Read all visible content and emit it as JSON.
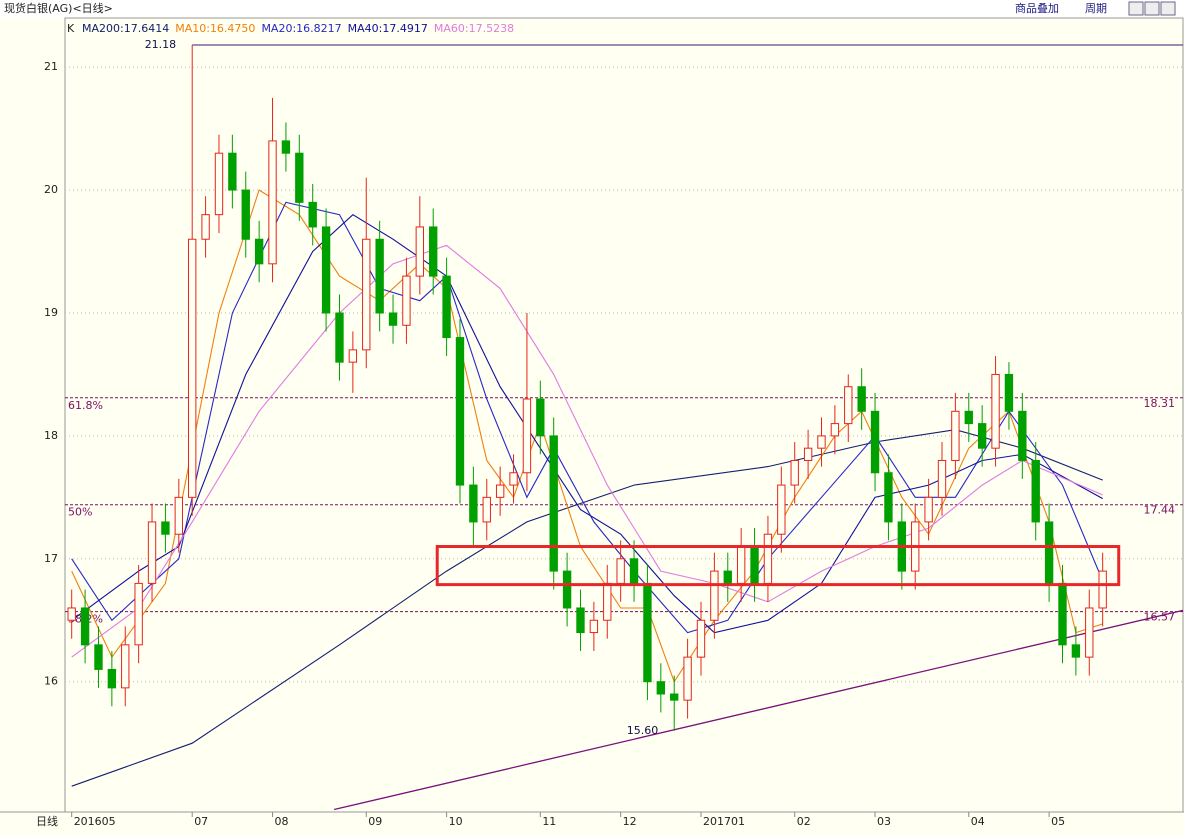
{
  "header": {
    "title": "现货白银(AG)<日线>",
    "buttons": [
      "商品叠加",
      "周期"
    ],
    "period": "日线"
  },
  "chart_data": {
    "type": "candlestick",
    "legend_prefix": "K",
    "open": [
      16.5,
      16.6,
      16.3,
      16.1,
      15.95,
      16.3,
      16.8,
      17.3,
      17.2,
      17.5,
      19.6,
      19.8,
      20.3,
      20.0,
      19.6,
      19.4,
      20.4,
      20.3,
      19.9,
      19.7,
      19.0,
      18.6,
      18.7,
      19.6,
      19.0,
      18.9,
      19.3,
      19.7,
      19.3,
      18.8,
      17.6,
      17.3,
      17.5,
      17.6,
      17.7,
      18.3,
      18.0,
      16.9,
      16.6,
      16.4,
      16.5,
      16.8,
      17.0,
      16.8,
      16.0,
      15.9,
      15.85,
      16.2,
      16.5,
      16.9,
      16.8,
      17.1,
      16.8,
      17.2,
      17.6,
      17.8,
      17.9,
      18.0,
      18.1,
      18.4,
      18.2,
      17.7,
      17.3,
      16.9,
      17.3,
      17.5,
      17.8,
      18.2,
      18.1,
      17.9,
      18.5,
      18.2,
      17.8,
      17.3,
      16.8,
      16.3,
      16.2,
      16.6
    ],
    "high": [
      16.75,
      16.75,
      16.45,
      16.25,
      16.45,
      16.95,
      17.45,
      17.45,
      17.65,
      21.18,
      19.95,
      20.45,
      20.45,
      20.15,
      19.75,
      20.75,
      20.55,
      20.45,
      20.05,
      19.85,
      19.15,
      18.85,
      20.1,
      19.75,
      19.15,
      19.45,
      19.95,
      19.85,
      19.45,
      18.95,
      17.75,
      17.65,
      17.75,
      17.85,
      19.0,
      18.45,
      18.15,
      17.05,
      16.75,
      16.65,
      16.95,
      17.15,
      17.15,
      16.95,
      16.15,
      16.05,
      16.35,
      16.65,
      17.05,
      17.05,
      17.25,
      17.25,
      17.35,
      17.75,
      17.95,
      18.05,
      18.15,
      18.25,
      18.5,
      18.55,
      18.35,
      17.85,
      17.45,
      17.45,
      17.65,
      17.95,
      18.35,
      18.35,
      18.25,
      18.65,
      18.6,
      18.35,
      17.95,
      17.45,
      16.95,
      16.45,
      16.75,
      17.05
    ],
    "low": [
      16.35,
      16.15,
      15.95,
      15.8,
      15.8,
      16.15,
      16.65,
      17.05,
      17.05,
      17.35,
      19.45,
      19.65,
      19.85,
      19.45,
      19.25,
      19.25,
      20.15,
      19.75,
      19.55,
      18.85,
      18.45,
      18.35,
      18.55,
      18.85,
      18.75,
      18.75,
      19.15,
      19.15,
      18.65,
      17.45,
      17.1,
      17.15,
      17.35,
      17.45,
      17.55,
      17.85,
      16.75,
      16.45,
      16.25,
      16.25,
      16.35,
      16.65,
      16.65,
      15.85,
      15.75,
      15.6,
      15.7,
      16.05,
      16.35,
      16.65,
      16.65,
      16.65,
      16.65,
      17.05,
      17.45,
      17.65,
      17.75,
      17.85,
      17.95,
      18.05,
      17.55,
      17.15,
      16.75,
      16.75,
      17.15,
      17.35,
      17.65,
      17.95,
      17.75,
      17.75,
      18.05,
      17.65,
      17.15,
      16.65,
      16.15,
      16.05,
      16.05,
      16.45
    ],
    "close": [
      16.6,
      16.3,
      16.1,
      15.95,
      16.3,
      16.8,
      17.3,
      17.2,
      17.5,
      19.6,
      19.8,
      20.3,
      20.0,
      19.6,
      19.4,
      20.4,
      20.3,
      19.9,
      19.7,
      19.0,
      18.6,
      18.7,
      19.6,
      19.0,
      18.9,
      19.3,
      19.7,
      19.3,
      18.8,
      17.6,
      17.3,
      17.5,
      17.6,
      17.7,
      18.3,
      18.0,
      16.9,
      16.6,
      16.4,
      16.5,
      16.8,
      17.0,
      16.8,
      16.0,
      15.9,
      15.85,
      16.2,
      16.5,
      16.9,
      16.8,
      17.1,
      16.8,
      17.2,
      17.6,
      17.8,
      17.9,
      18.0,
      18.1,
      18.4,
      18.2,
      17.7,
      17.3,
      16.9,
      17.3,
      17.5,
      17.8,
      18.2,
      18.1,
      17.9,
      18.5,
      18.2,
      17.8,
      17.3,
      16.8,
      16.3,
      16.2,
      16.6,
      16.9
    ],
    "up_color": "#e8241c",
    "down_color": "#00a000",
    "series": [
      {
        "name": "MA200:17.6414",
        "color": "#14206e",
        "x": [
          0,
          9,
          20,
          28,
          34,
          42,
          52,
          60,
          66,
          71,
          77
        ],
        "values": [
          15.15,
          15.5,
          16.3,
          16.9,
          17.3,
          17.6,
          17.75,
          17.95,
          18.05,
          17.9,
          17.64
        ]
      },
      {
        "name": "MA10:16.4750",
        "color": "#f08010",
        "x": [
          0,
          3,
          7,
          11,
          14,
          17,
          20,
          23,
          26,
          28,
          31,
          33,
          35,
          38,
          41,
          43,
          45,
          48,
          51,
          54,
          57,
          59,
          62,
          64,
          67,
          70,
          73,
          75,
          77
        ],
        "values": [
          16.9,
          16.2,
          16.8,
          19.0,
          20.0,
          19.8,
          19.3,
          19.1,
          19.4,
          19.2,
          17.8,
          17.5,
          18.1,
          17.1,
          16.6,
          16.6,
          16.0,
          16.5,
          16.9,
          17.5,
          18.0,
          18.2,
          17.5,
          17.2,
          17.9,
          18.2,
          17.3,
          16.4,
          16.47
        ]
      },
      {
        "name": "MA20:16.8217",
        "color": "#2828c8",
        "x": [
          0,
          3,
          8,
          12,
          16,
          20,
          23,
          26,
          28,
          31,
          34,
          36,
          39,
          42,
          46,
          49,
          52,
          56,
          60,
          63,
          66,
          70,
          74,
          77
        ],
        "values": [
          17.0,
          16.5,
          17.0,
          19.0,
          19.9,
          19.8,
          19.2,
          19.1,
          19.3,
          18.3,
          17.5,
          17.9,
          17.3,
          16.9,
          16.4,
          16.5,
          17.0,
          17.5,
          18.0,
          17.5,
          17.5,
          18.2,
          17.6,
          16.82
        ]
      },
      {
        "name": "MA40:17.4917",
        "color": "#10109c",
        "x": [
          0,
          5,
          8,
          13,
          18,
          21,
          24,
          28,
          32,
          35,
          38,
          41,
          45,
          48,
          52,
          56,
          60,
          64,
          68,
          71,
          77
        ],
        "values": [
          16.5,
          16.9,
          17.1,
          18.5,
          19.5,
          19.8,
          19.6,
          19.3,
          18.4,
          17.9,
          17.4,
          17.2,
          16.7,
          16.4,
          16.5,
          16.8,
          17.5,
          17.6,
          17.8,
          17.85,
          17.49
        ]
      },
      {
        "name": "MA60:17.5238",
        "color": "#e27ae2",
        "x": [
          0,
          5,
          9,
          14,
          20,
          24,
          28,
          32,
          36,
          40,
          44,
          48,
          52,
          56,
          60,
          64,
          68,
          71,
          77
        ],
        "values": [
          16.2,
          16.6,
          17.3,
          18.2,
          19.0,
          19.4,
          19.55,
          19.2,
          18.5,
          17.6,
          16.9,
          16.8,
          16.65,
          16.9,
          17.1,
          17.25,
          17.6,
          17.8,
          17.52
        ]
      }
    ],
    "levels": [
      {
        "name": "61.8%",
        "value": 18.31
      },
      {
        "name": "50%",
        "value": 17.44
      },
      {
        "name": "38.2%",
        "value": 16.57
      }
    ],
    "high_mark": {
      "x": 9,
      "value": 21.18
    },
    "low_mark": {
      "x": 45,
      "value": 15.6,
      "label": "15.60"
    },
    "box": {
      "x": [
        27.3,
        78.2
      ],
      "y": [
        16.79,
        17.1
      ]
    },
    "trendline": {
      "x": [
        19.6,
        83
      ],
      "y": [
        14.96,
        16.58
      ]
    },
    "xlim": [
      -0.5,
      83
    ],
    "ylim": [
      14.94,
      21.4
    ],
    "yticks": [
      16,
      17,
      18,
      19,
      20,
      21
    ],
    "xticks": [
      {
        "value": 0,
        "label": "201605"
      },
      {
        "value": 9,
        "label": "07"
      },
      {
        "value": 15,
        "label": "08"
      },
      {
        "value": 22,
        "label": "09"
      },
      {
        "value": 28,
        "label": "10"
      },
      {
        "value": 35,
        "label": "11"
      },
      {
        "value": 41,
        "label": "12"
      },
      {
        "value": 47,
        "label": "201701"
      },
      {
        "value": 54,
        "label": "02"
      },
      {
        "value": 60,
        "label": "03"
      },
      {
        "value": 67,
        "label": "04"
      },
      {
        "value": 73,
        "label": "05"
      }
    ],
    "grid": true
  }
}
